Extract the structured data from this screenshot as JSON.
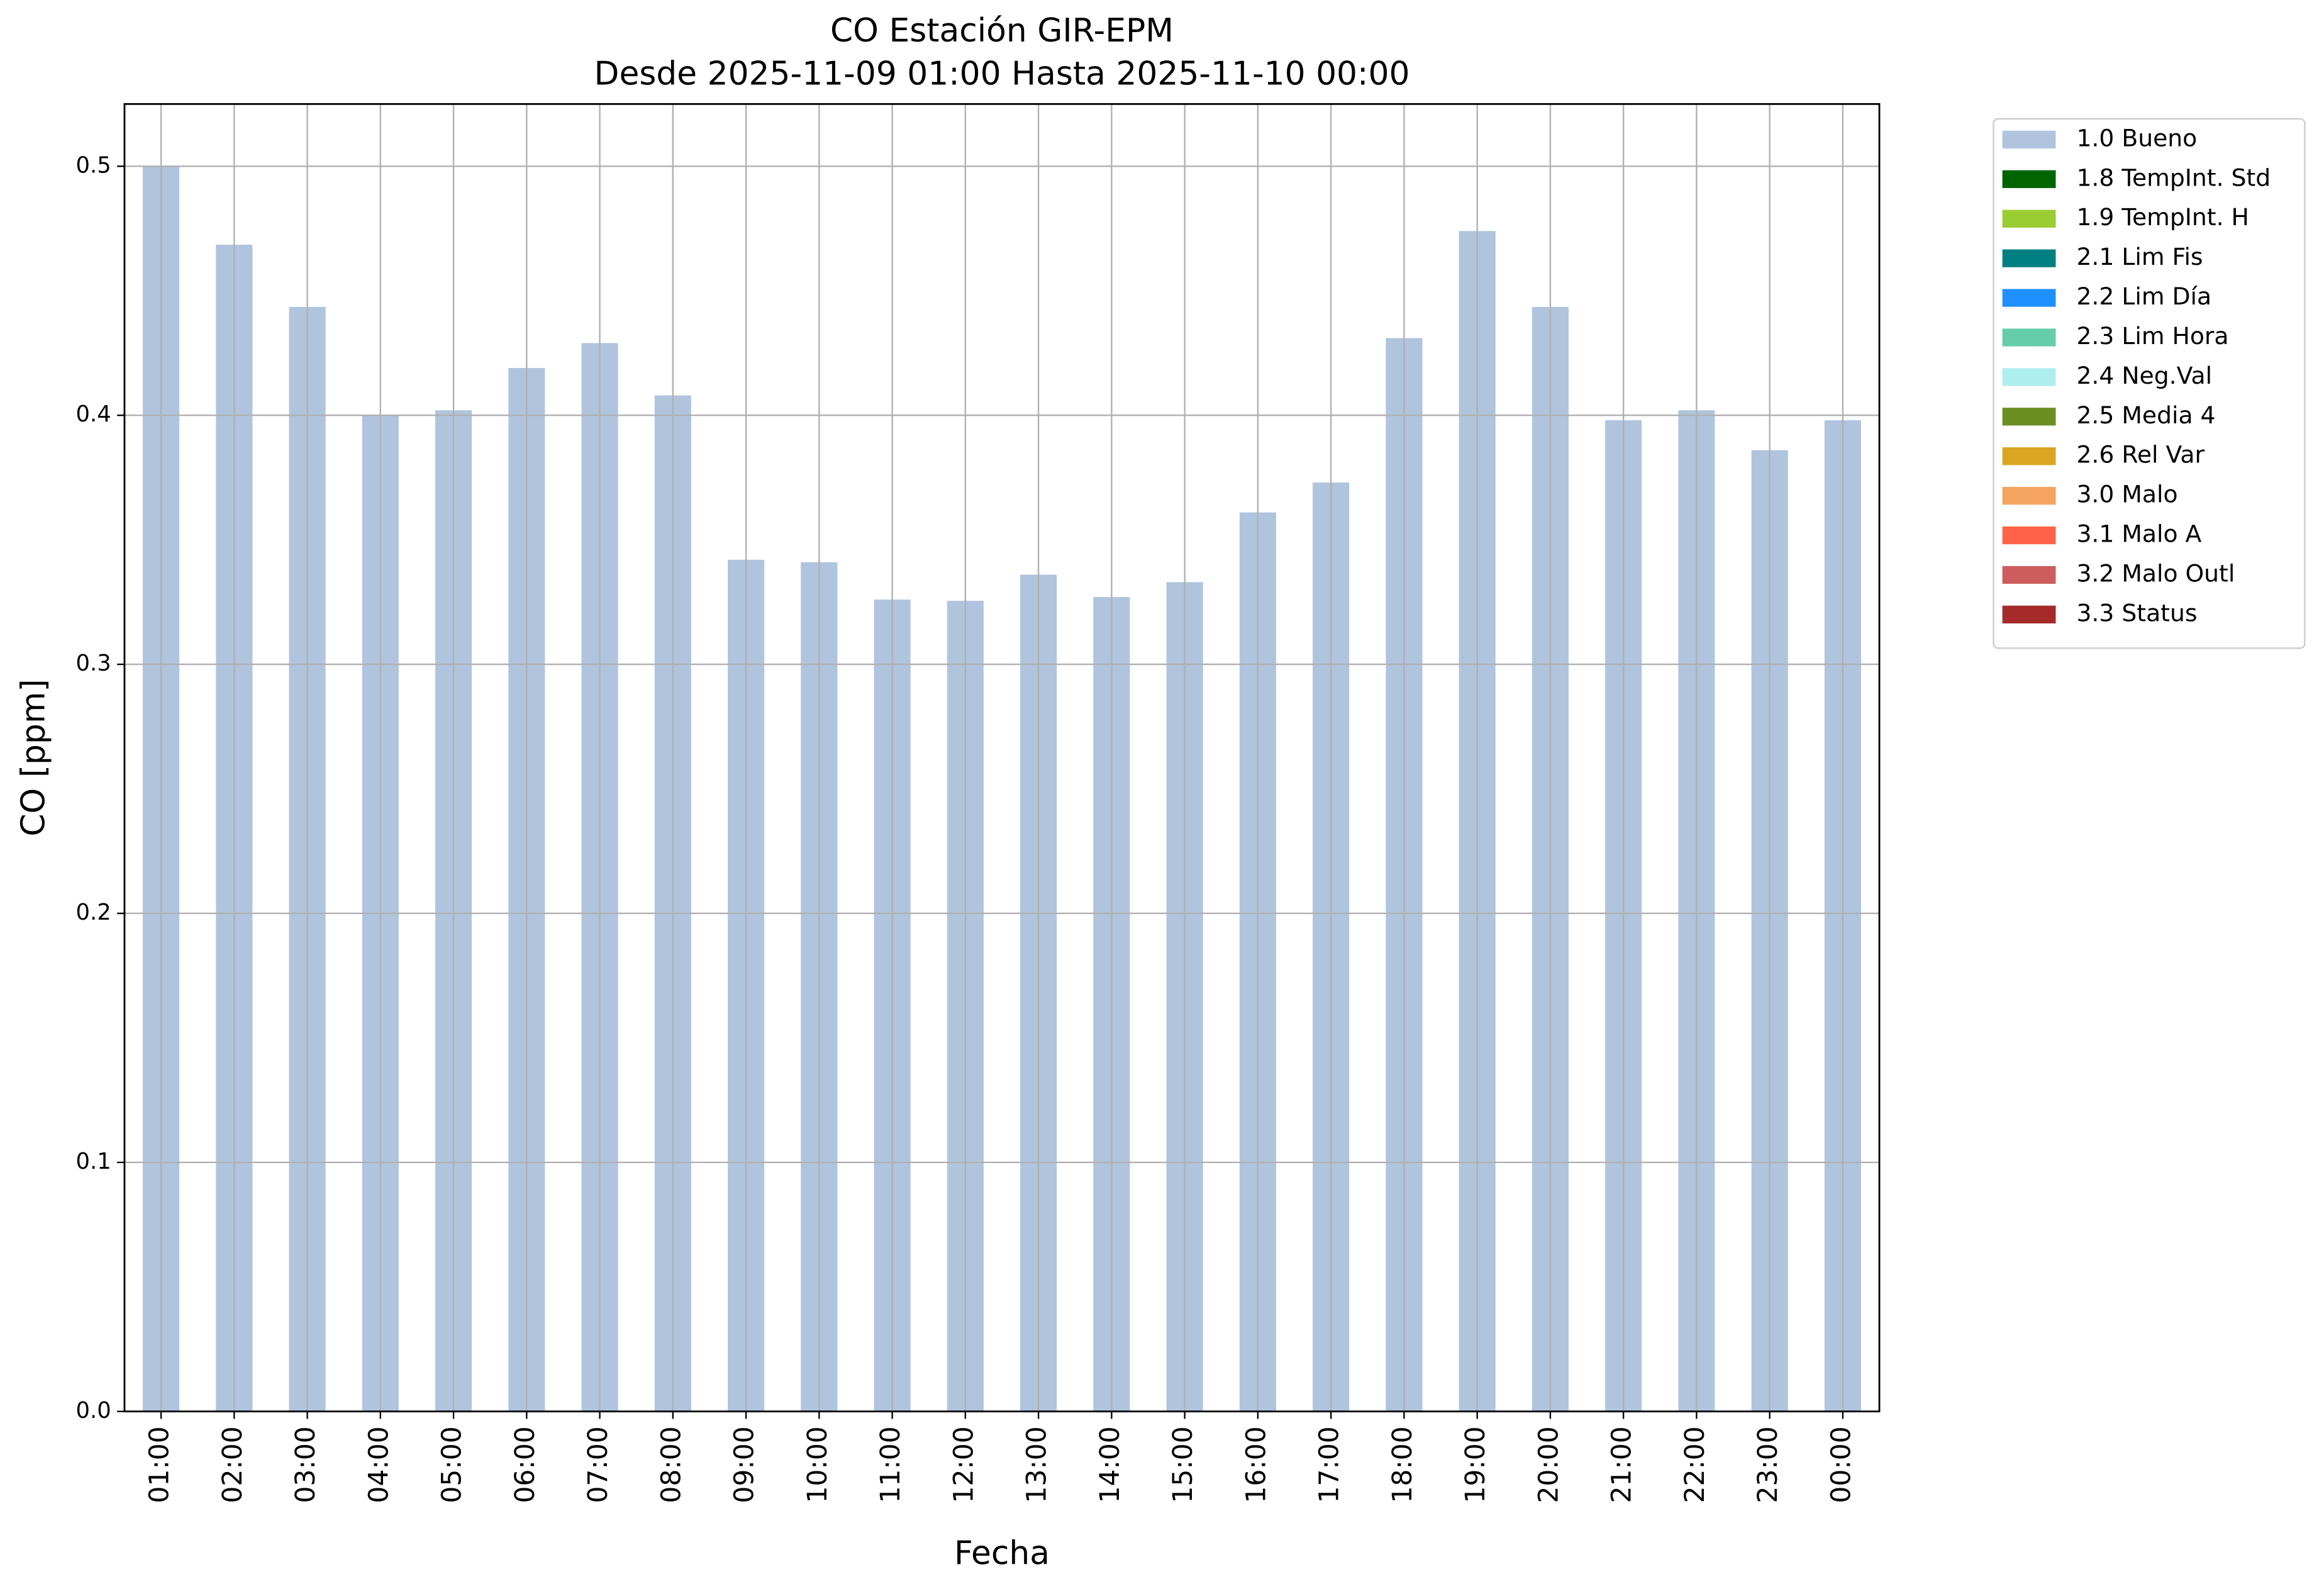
{
  "chart_data": {
    "type": "bar",
    "stacked": true,
    "title": "CO Estación GIR-EPM",
    "subtitle": "Desde 2025-11-09 01:00 Hasta 2025-11-10 00:00",
    "x_label": "Fecha",
    "y_label": "CO [ppm]",
    "categories": [
      "01:00",
      "02:00",
      "03:00",
      "04:00",
      "05:00",
      "06:00",
      "07:00",
      "08:00",
      "09:00",
      "10:00",
      "11:00",
      "12:00",
      "13:00",
      "14:00",
      "15:00",
      "16:00",
      "17:00",
      "18:00",
      "19:00",
      "20:00",
      "21:00",
      "22:00",
      "23:00",
      "00:00"
    ],
    "series": [
      {
        "name": "1.0 Bueno",
        "color": "#b0c4de",
        "values": [
          0.5,
          0.4685,
          0.4435,
          0.4,
          0.402,
          0.419,
          0.429,
          0.408,
          0.342,
          0.341,
          0.326,
          0.3255,
          0.336,
          0.327,
          0.333,
          0.361,
          0.373,
          0.431,
          0.474,
          0.4435,
          0.398,
          0.402,
          0.386,
          0.398
        ]
      },
      {
        "name": "1.8 TempInt. Std",
        "color": "#006400",
        "values": [
          null,
          null,
          null,
          null,
          null,
          null,
          null,
          null,
          null,
          null,
          null,
          null,
          null,
          null,
          null,
          null,
          null,
          null,
          null,
          null,
          null,
          null,
          null,
          null
        ]
      },
      {
        "name": "1.9 TempInt. H",
        "color": "#9acd32",
        "values": [
          null,
          null,
          null,
          null,
          null,
          null,
          null,
          null,
          null,
          null,
          null,
          null,
          null,
          null,
          null,
          null,
          null,
          null,
          null,
          null,
          null,
          null,
          null,
          null
        ]
      },
      {
        "name": "2.1 Lim Fis",
        "color": "#008080",
        "values": [
          null,
          null,
          null,
          null,
          null,
          null,
          null,
          null,
          null,
          null,
          null,
          null,
          null,
          null,
          null,
          null,
          null,
          null,
          null,
          null,
          null,
          null,
          null,
          null
        ]
      },
      {
        "name": "2.2 Lim Día",
        "color": "#1e90ff",
        "values": [
          null,
          null,
          null,
          null,
          null,
          null,
          null,
          null,
          null,
          null,
          null,
          null,
          null,
          null,
          null,
          null,
          null,
          null,
          null,
          null,
          null,
          null,
          null,
          null
        ]
      },
      {
        "name": "2.3 Lim Hora",
        "color": "#66cdaa",
        "values": [
          null,
          null,
          null,
          null,
          null,
          null,
          null,
          null,
          null,
          null,
          null,
          null,
          null,
          null,
          null,
          null,
          null,
          null,
          null,
          null,
          null,
          null,
          null,
          null
        ]
      },
      {
        "name": "2.4 Neg.Val",
        "color": "#afeeee",
        "values": [
          null,
          null,
          null,
          null,
          null,
          null,
          null,
          null,
          null,
          null,
          null,
          null,
          null,
          null,
          null,
          null,
          null,
          null,
          null,
          null,
          null,
          null,
          null,
          null
        ]
      },
      {
        "name": "2.5 Media 4",
        "color": "#6b8e23",
        "values": [
          null,
          null,
          null,
          null,
          null,
          null,
          null,
          null,
          null,
          null,
          null,
          null,
          null,
          null,
          null,
          null,
          null,
          null,
          null,
          null,
          null,
          null,
          null,
          null
        ]
      },
      {
        "name": "2.6 Rel Var",
        "color": "#daa520",
        "values": [
          null,
          null,
          null,
          null,
          null,
          null,
          null,
          null,
          null,
          null,
          null,
          null,
          null,
          null,
          null,
          null,
          null,
          null,
          null,
          null,
          null,
          null,
          null,
          null
        ]
      },
      {
        "name": "3.0 Malo",
        "color": "#f4a460",
        "values": [
          null,
          null,
          null,
          null,
          null,
          null,
          null,
          null,
          null,
          null,
          null,
          null,
          null,
          null,
          null,
          null,
          null,
          null,
          null,
          null,
          null,
          null,
          null,
          null
        ]
      },
      {
        "name": "3.1 Malo A",
        "color": "#ff6347",
        "values": [
          null,
          null,
          null,
          null,
          null,
          null,
          null,
          null,
          null,
          null,
          null,
          null,
          null,
          null,
          null,
          null,
          null,
          null,
          null,
          null,
          null,
          null,
          null,
          null
        ]
      },
      {
        "name": "3.2 Malo Outl",
        "color": "#cd5c5c",
        "values": [
          null,
          null,
          null,
          null,
          null,
          null,
          null,
          null,
          null,
          null,
          null,
          null,
          null,
          null,
          null,
          null,
          null,
          null,
          null,
          null,
          null,
          null,
          null,
          null
        ]
      },
      {
        "name": "3.3 Status",
        "color": "#a52a2a",
        "values": [
          null,
          null,
          null,
          null,
          null,
          null,
          null,
          null,
          null,
          null,
          null,
          null,
          null,
          null,
          null,
          null,
          null,
          null,
          null,
          null,
          null,
          null,
          null,
          null
        ]
      }
    ],
    "ylim": [
      0,
      0.525
    ],
    "yticks": [
      {
        "value": 0,
        "label": "0.0"
      },
      0.1,
      0.2,
      0.3,
      0.4,
      0.5
    ],
    "grid": true,
    "legend": "outside"
  }
}
